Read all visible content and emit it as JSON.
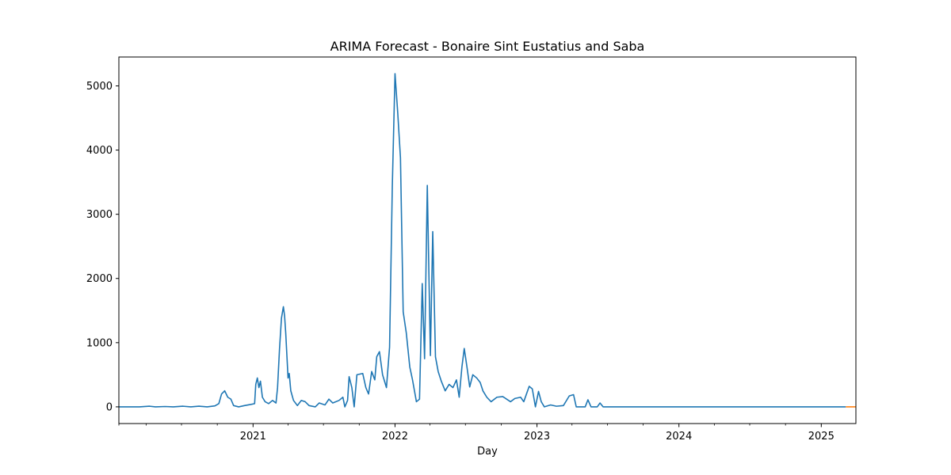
{
  "chart_data": {
    "type": "line",
    "title": "ARIMA Forecast - Bonaire Sint Eustatius and Saba",
    "xlabel": "Day",
    "ylabel": "",
    "xlim": [
      "2020-01-22",
      "2025-03-31"
    ],
    "ylim": [
      -260,
      5450
    ],
    "x_ticks": [
      {
        "date": "2021-01-01",
        "label": "2021"
      },
      {
        "date": "2022-01-01",
        "label": "2022"
      },
      {
        "date": "2023-01-01",
        "label": "2023"
      },
      {
        "date": "2024-01-01",
        "label": "2024"
      },
      {
        "date": "2025-01-01",
        "label": "2025"
      }
    ],
    "y_ticks": [
      0,
      1000,
      2000,
      3000,
      4000,
      5000
    ],
    "grid": false,
    "legend": "none",
    "series": [
      {
        "color": "#1f77b4",
        "points": [
          [
            "2020-01-22",
            0
          ],
          [
            "2020-03-15",
            0
          ],
          [
            "2020-04-10",
            10
          ],
          [
            "2020-04-25",
            0
          ],
          [
            "2020-05-20",
            5
          ],
          [
            "2020-06-10",
            0
          ],
          [
            "2020-07-05",
            10
          ],
          [
            "2020-07-25",
            0
          ],
          [
            "2020-08-15",
            10
          ],
          [
            "2020-09-05",
            0
          ],
          [
            "2020-09-25",
            15
          ],
          [
            "2020-10-05",
            50
          ],
          [
            "2020-10-12",
            200
          ],
          [
            "2020-10-20",
            250
          ],
          [
            "2020-10-28",
            150
          ],
          [
            "2020-11-05",
            120
          ],
          [
            "2020-11-12",
            20
          ],
          [
            "2020-11-25",
            0
          ],
          [
            "2020-12-10",
            20
          ],
          [
            "2020-12-28",
            40
          ],
          [
            "2021-01-05",
            50
          ],
          [
            "2021-01-08",
            350
          ],
          [
            "2021-01-12",
            450
          ],
          [
            "2021-01-16",
            300
          ],
          [
            "2021-01-20",
            400
          ],
          [
            "2021-01-25",
            150
          ],
          [
            "2021-02-01",
            80
          ],
          [
            "2021-02-10",
            50
          ],
          [
            "2021-02-20",
            100
          ],
          [
            "2021-03-01",
            60
          ],
          [
            "2021-03-05",
            300
          ],
          [
            "2021-03-10",
            900
          ],
          [
            "2021-03-15",
            1380
          ],
          [
            "2021-03-20",
            1560
          ],
          [
            "2021-03-23",
            1420
          ],
          [
            "2021-03-26",
            1150
          ],
          [
            "2021-03-29",
            800
          ],
          [
            "2021-04-01",
            450
          ],
          [
            "2021-04-04",
            520
          ],
          [
            "2021-04-08",
            250
          ],
          [
            "2021-04-15",
            100
          ],
          [
            "2021-04-25",
            20
          ],
          [
            "2021-05-05",
            100
          ],
          [
            "2021-05-15",
            80
          ],
          [
            "2021-05-25",
            20
          ],
          [
            "2021-06-10",
            0
          ],
          [
            "2021-06-20",
            60
          ],
          [
            "2021-07-05",
            30
          ],
          [
            "2021-07-15",
            120
          ],
          [
            "2021-07-25",
            60
          ],
          [
            "2021-08-10",
            100
          ],
          [
            "2021-08-20",
            150
          ],
          [
            "2021-08-25",
            0
          ],
          [
            "2021-09-01",
            100
          ],
          [
            "2021-09-05",
            470
          ],
          [
            "2021-09-12",
            300
          ],
          [
            "2021-09-18",
            0
          ],
          [
            "2021-09-25",
            500
          ],
          [
            "2021-10-10",
            520
          ],
          [
            "2021-10-18",
            300
          ],
          [
            "2021-10-25",
            200
          ],
          [
            "2021-11-02",
            550
          ],
          [
            "2021-11-10",
            420
          ],
          [
            "2021-11-15",
            780
          ],
          [
            "2021-11-22",
            860
          ],
          [
            "2021-11-30",
            500
          ],
          [
            "2021-12-10",
            300
          ],
          [
            "2021-12-18",
            930
          ],
          [
            "2021-12-25",
            3430
          ],
          [
            "2022-01-01",
            5190
          ],
          [
            "2022-01-08",
            4580
          ],
          [
            "2022-01-15",
            3880
          ],
          [
            "2022-01-22",
            1480
          ],
          [
            "2022-01-30",
            1150
          ],
          [
            "2022-02-08",
            620
          ],
          [
            "2022-02-15",
            420
          ],
          [
            "2022-02-25",
            80
          ],
          [
            "2022-03-05",
            120
          ],
          [
            "2022-03-12",
            1920
          ],
          [
            "2022-03-18",
            750
          ],
          [
            "2022-03-25",
            3450
          ],
          [
            "2022-04-02",
            800
          ],
          [
            "2022-04-08",
            2730
          ],
          [
            "2022-04-15",
            780
          ],
          [
            "2022-04-22",
            550
          ],
          [
            "2022-04-30",
            400
          ],
          [
            "2022-05-10",
            250
          ],
          [
            "2022-05-20",
            350
          ],
          [
            "2022-05-30",
            300
          ],
          [
            "2022-06-08",
            420
          ],
          [
            "2022-06-15",
            150
          ],
          [
            "2022-06-22",
            620
          ],
          [
            "2022-06-28",
            910
          ],
          [
            "2022-07-05",
            620
          ],
          [
            "2022-07-12",
            310
          ],
          [
            "2022-07-20",
            500
          ],
          [
            "2022-07-30",
            450
          ],
          [
            "2022-08-08",
            380
          ],
          [
            "2022-08-15",
            250
          ],
          [
            "2022-08-25",
            150
          ],
          [
            "2022-09-05",
            80
          ],
          [
            "2022-09-20",
            150
          ],
          [
            "2022-10-05",
            160
          ],
          [
            "2022-10-15",
            120
          ],
          [
            "2022-10-25",
            80
          ],
          [
            "2022-11-05",
            130
          ],
          [
            "2022-11-20",
            150
          ],
          [
            "2022-11-28",
            80
          ],
          [
            "2022-12-05",
            200
          ],
          [
            "2022-12-12",
            320
          ],
          [
            "2022-12-20",
            280
          ],
          [
            "2022-12-28",
            0
          ],
          [
            "2023-01-05",
            240
          ],
          [
            "2023-01-12",
            80
          ],
          [
            "2023-01-20",
            0
          ],
          [
            "2023-02-05",
            30
          ],
          [
            "2023-02-20",
            10
          ],
          [
            "2023-03-10",
            20
          ],
          [
            "2023-03-25",
            170
          ],
          [
            "2023-04-05",
            190
          ],
          [
            "2023-04-12",
            0
          ],
          [
            "2023-05-05",
            0
          ],
          [
            "2023-05-12",
            110
          ],
          [
            "2023-05-20",
            0
          ],
          [
            "2023-06-05",
            0
          ],
          [
            "2023-06-12",
            60
          ],
          [
            "2023-06-20",
            0
          ],
          [
            "2023-07-25",
            0
          ],
          [
            "2025-03-05",
            0
          ]
        ]
      },
      {
        "color": "#ff7f0e",
        "points": [
          [
            "2025-03-05",
            0
          ],
          [
            "2025-03-31",
            0
          ]
        ]
      }
    ]
  }
}
